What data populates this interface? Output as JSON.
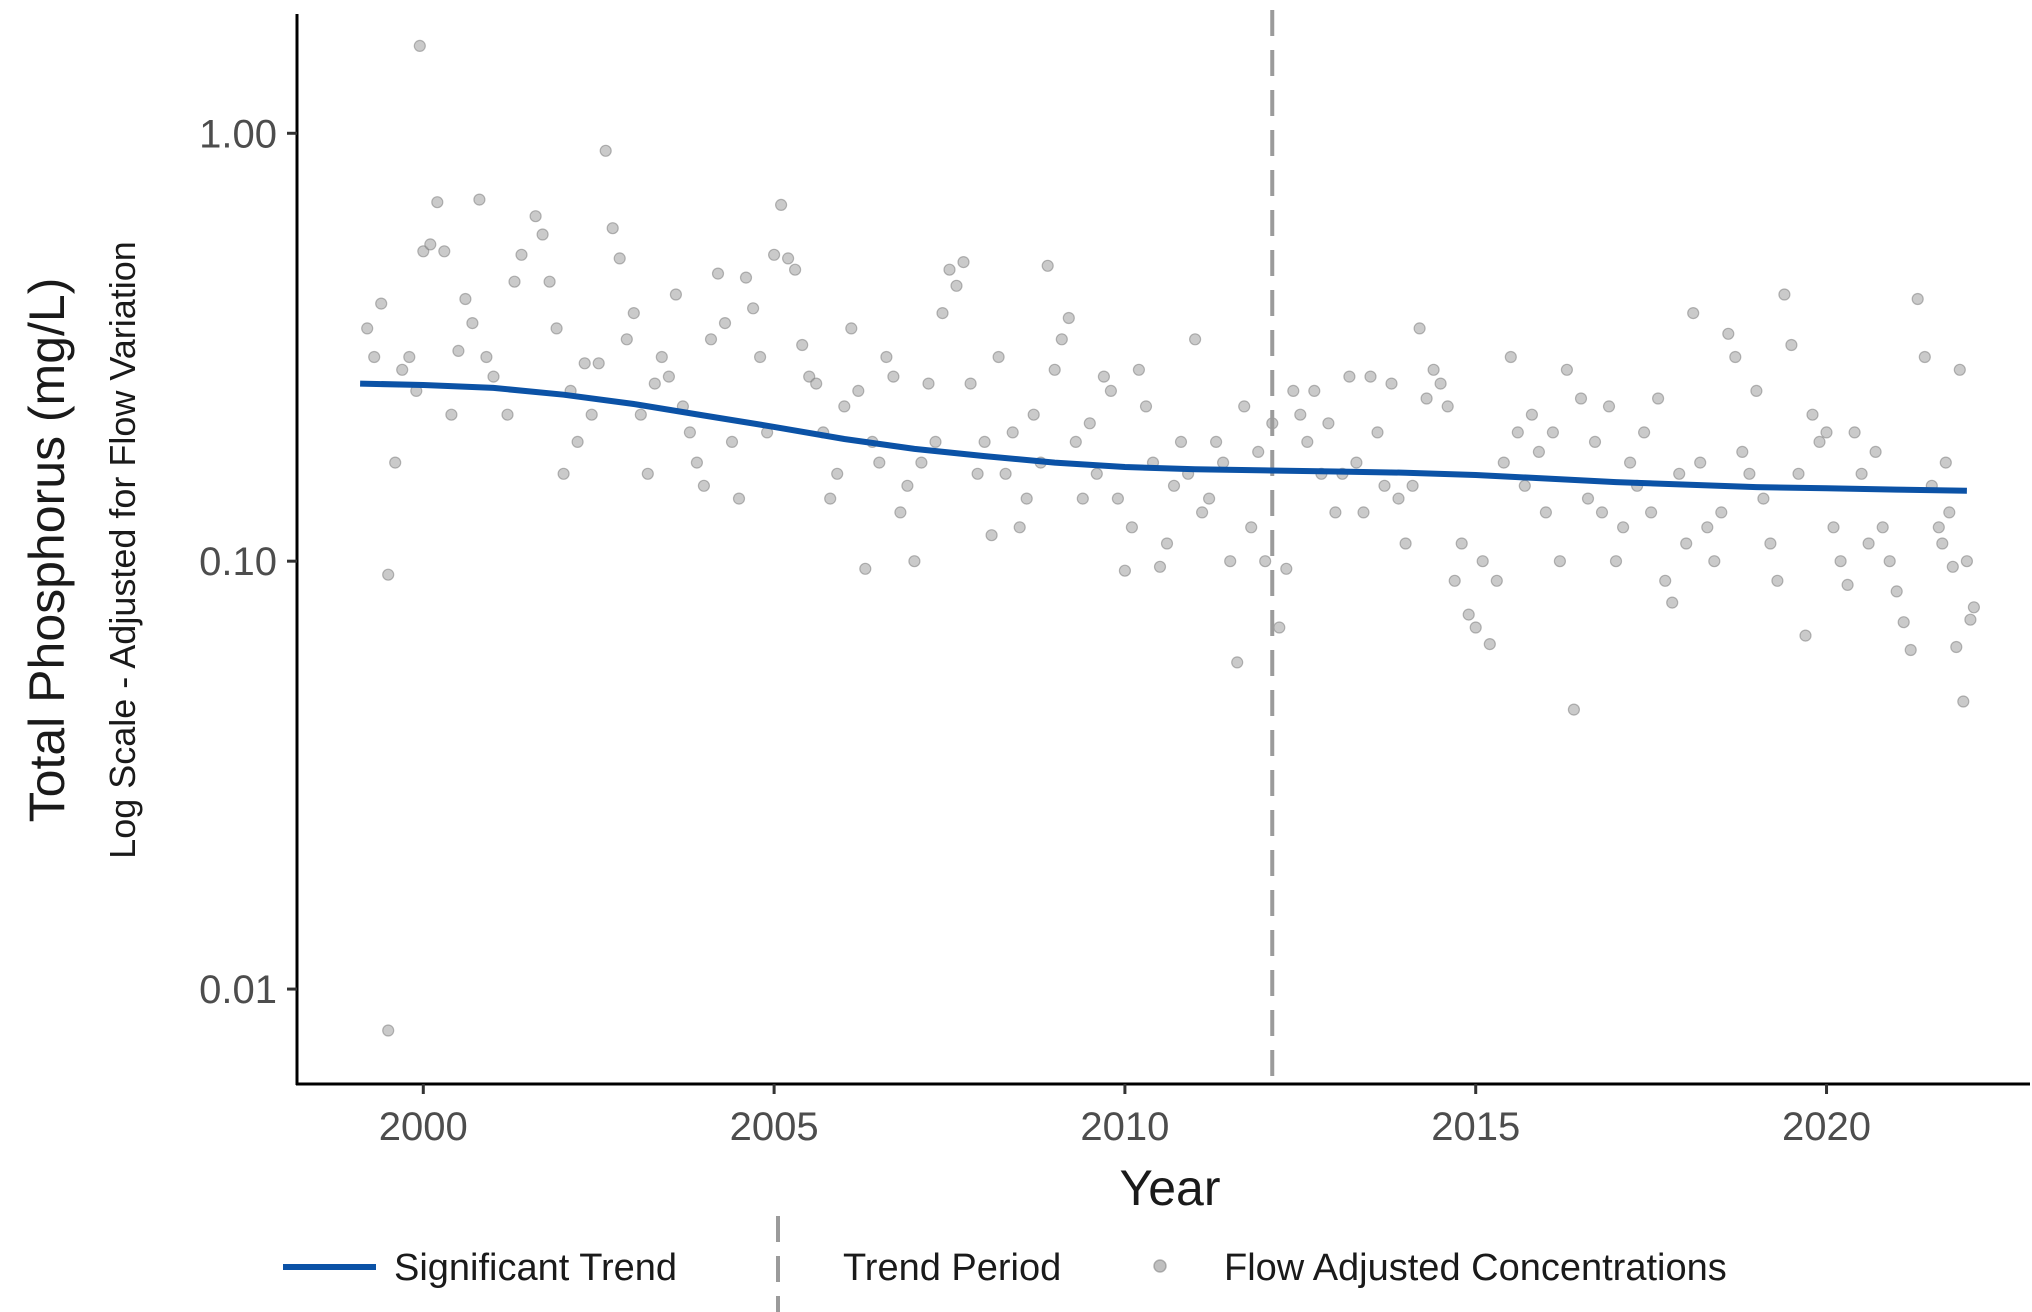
{
  "chart_data": {
    "type": "scatter",
    "title": "",
    "xlabel": "Year",
    "ylabel": "Total Phosphorus (mg/L)",
    "ylabel_sub": "Log Scale - Adjusted for Flow Variation",
    "y_scale": "log",
    "xlim": [
      1998.2,
      2022.9
    ],
    "ylim": [
      0.006,
      1.9
    ],
    "x_ticks": [
      2000,
      2005,
      2010,
      2015,
      2020
    ],
    "x_tick_labels": [
      "2000",
      "2005",
      "2010",
      "2015",
      "2020"
    ],
    "y_ticks": [
      0.01,
      0.1,
      1.0
    ],
    "y_tick_labels": [
      "0.01",
      "0.10",
      "1.00"
    ],
    "grid": false,
    "legend_position": "bottom",
    "legend": [
      {
        "label": "Significant Trend",
        "kind": "line",
        "color": "#0b52a6"
      },
      {
        "label": "Trend Period",
        "kind": "dashed-vline",
        "color": "#9b9b9b"
      },
      {
        "label": "Flow Adjusted Concentrations",
        "kind": "point",
        "color": "#aaaaaa"
      }
    ],
    "trend_period_start": 2012.1,
    "series": [
      {
        "name": "Significant Trend",
        "type": "line",
        "color": "#0b52a6",
        "x": [
          1999.1,
          2000.0,
          2001.0,
          2002.0,
          2003.0,
          2004.0,
          2005.0,
          2006.0,
          2007.0,
          2008.0,
          2009.0,
          2010.0,
          2011.0,
          2012.0,
          2013.0,
          2014.0,
          2015.0,
          2016.0,
          2017.0,
          2018.0,
          2019.0,
          2020.0,
          2021.0,
          2022.0
        ],
        "y": [
          0.26,
          0.258,
          0.254,
          0.245,
          0.233,
          0.219,
          0.206,
          0.193,
          0.183,
          0.176,
          0.17,
          0.166,
          0.164,
          0.163,
          0.162,
          0.161,
          0.159,
          0.156,
          0.153,
          0.151,
          0.149,
          0.148,
          0.147,
          0.146
        ]
      },
      {
        "name": "Flow Adjusted Concentrations",
        "type": "scatter",
        "color": "#a6a6a6",
        "points": [
          [
            1999.2,
            0.35
          ],
          [
            1999.3,
            0.3
          ],
          [
            1999.4,
            0.4
          ],
          [
            1999.5,
            0.093
          ],
          [
            1999.5,
            0.008
          ],
          [
            1999.6,
            0.17
          ],
          [
            1999.7,
            0.28
          ],
          [
            1999.8,
            0.3
          ],
          [
            1999.9,
            0.25
          ],
          [
            1999.95,
            1.6
          ],
          [
            2000.0,
            0.53
          ],
          [
            2000.1,
            0.55
          ],
          [
            2000.2,
            0.69
          ],
          [
            2000.3,
            0.53
          ],
          [
            2000.4,
            0.22
          ],
          [
            2000.5,
            0.31
          ],
          [
            2000.6,
            0.41
          ],
          [
            2000.7,
            0.36
          ],
          [
            2000.8,
            0.7
          ],
          [
            2000.9,
            0.3
          ],
          [
            2001.0,
            0.27
          ],
          [
            2001.2,
            0.22
          ],
          [
            2001.3,
            0.45
          ],
          [
            2001.4,
            0.52
          ],
          [
            2001.6,
            0.64
          ],
          [
            2001.7,
            0.58
          ],
          [
            2001.8,
            0.45
          ],
          [
            2001.9,
            0.35
          ],
          [
            2002.0,
            0.16
          ],
          [
            2002.1,
            0.25
          ],
          [
            2002.2,
            0.19
          ],
          [
            2002.3,
            0.29
          ],
          [
            2002.4,
            0.22
          ],
          [
            2002.5,
            0.29
          ],
          [
            2002.6,
            0.91
          ],
          [
            2002.7,
            0.6
          ],
          [
            2002.8,
            0.51
          ],
          [
            2002.9,
            0.33
          ],
          [
            2003.0,
            0.38
          ],
          [
            2003.1,
            0.22
          ],
          [
            2003.2,
            0.16
          ],
          [
            2003.3,
            0.26
          ],
          [
            2003.4,
            0.3
          ],
          [
            2003.5,
            0.27
          ],
          [
            2003.6,
            0.42
          ],
          [
            2003.7,
            0.23
          ],
          [
            2003.8,
            0.2
          ],
          [
            2003.9,
            0.17
          ],
          [
            2004.0,
            0.15
          ],
          [
            2004.1,
            0.33
          ],
          [
            2004.2,
            0.47
          ],
          [
            2004.3,
            0.36
          ],
          [
            2004.4,
            0.19
          ],
          [
            2004.5,
            0.14
          ],
          [
            2004.6,
            0.46
          ],
          [
            2004.7,
            0.39
          ],
          [
            2004.8,
            0.3
          ],
          [
            2004.9,
            0.2
          ],
          [
            2005.0,
            0.52
          ],
          [
            2005.1,
            0.68
          ],
          [
            2005.2,
            0.51
          ],
          [
            2005.3,
            0.48
          ],
          [
            2005.4,
            0.32
          ],
          [
            2005.5,
            0.27
          ],
          [
            2005.6,
            0.26
          ],
          [
            2005.7,
            0.2
          ],
          [
            2005.8,
            0.14
          ],
          [
            2005.9,
            0.16
          ],
          [
            2006.0,
            0.23
          ],
          [
            2006.1,
            0.35
          ],
          [
            2006.2,
            0.25
          ],
          [
            2006.3,
            0.096
          ],
          [
            2006.4,
            0.19
          ],
          [
            2006.5,
            0.17
          ],
          [
            2006.6,
            0.3
          ],
          [
            2006.7,
            0.27
          ],
          [
            2006.8,
            0.13
          ],
          [
            2006.9,
            0.15
          ],
          [
            2007.0,
            0.1
          ],
          [
            2007.1,
            0.17
          ],
          [
            2007.2,
            0.26
          ],
          [
            2007.3,
            0.19
          ],
          [
            2007.4,
            0.38
          ],
          [
            2007.5,
            0.48
          ],
          [
            2007.6,
            0.44
          ],
          [
            2007.7,
            0.5
          ],
          [
            2007.8,
            0.26
          ],
          [
            2007.9,
            0.16
          ],
          [
            2008.0,
            0.19
          ],
          [
            2008.1,
            0.115
          ],
          [
            2008.2,
            0.3
          ],
          [
            2008.3,
            0.16
          ],
          [
            2008.4,
            0.2
          ],
          [
            2008.5,
            0.12
          ],
          [
            2008.6,
            0.14
          ],
          [
            2008.7,
            0.22
          ],
          [
            2008.8,
            0.17
          ],
          [
            2008.9,
            0.49
          ],
          [
            2009.0,
            0.28
          ],
          [
            2009.1,
            0.33
          ],
          [
            2009.2,
            0.37
          ],
          [
            2009.3,
            0.19
          ],
          [
            2009.4,
            0.14
          ],
          [
            2009.5,
            0.21
          ],
          [
            2009.6,
            0.16
          ],
          [
            2009.7,
            0.27
          ],
          [
            2009.8,
            0.25
          ],
          [
            2009.9,
            0.14
          ],
          [
            2010.0,
            0.095
          ],
          [
            2010.1,
            0.12
          ],
          [
            2010.2,
            0.28
          ],
          [
            2010.3,
            0.23
          ],
          [
            2010.4,
            0.17
          ],
          [
            2010.5,
            0.097
          ],
          [
            2010.6,
            0.11
          ],
          [
            2010.7,
            0.15
          ],
          [
            2010.8,
            0.19
          ],
          [
            2010.9,
            0.16
          ],
          [
            2011.0,
            0.33
          ],
          [
            2011.1,
            0.13
          ],
          [
            2011.2,
            0.14
          ],
          [
            2011.3,
            0.19
          ],
          [
            2011.4,
            0.17
          ],
          [
            2011.5,
            0.1
          ],
          [
            2011.6,
            0.058
          ],
          [
            2011.7,
            0.23
          ],
          [
            2011.8,
            0.12
          ],
          [
            2011.9,
            0.18
          ],
          [
            2012.0,
            0.1
          ],
          [
            2012.1,
            0.21
          ],
          [
            2012.2,
            0.07
          ],
          [
            2012.3,
            0.096
          ],
          [
            2012.4,
            0.25
          ],
          [
            2012.5,
            0.22
          ],
          [
            2012.6,
            0.19
          ],
          [
            2012.7,
            0.25
          ],
          [
            2012.8,
            0.16
          ],
          [
            2012.9,
            0.21
          ],
          [
            2013.0,
            0.13
          ],
          [
            2013.1,
            0.16
          ],
          [
            2013.2,
            0.27
          ],
          [
            2013.3,
            0.17
          ],
          [
            2013.4,
            0.13
          ],
          [
            2013.5,
            0.27
          ],
          [
            2013.6,
            0.2
          ],
          [
            2013.7,
            0.15
          ],
          [
            2013.8,
            0.26
          ],
          [
            2013.9,
            0.14
          ],
          [
            2014.0,
            0.11
          ],
          [
            2014.1,
            0.15
          ],
          [
            2014.2,
            0.35
          ],
          [
            2014.3,
            0.24
          ],
          [
            2014.4,
            0.28
          ],
          [
            2014.5,
            0.26
          ],
          [
            2014.6,
            0.23
          ],
          [
            2014.7,
            0.09
          ],
          [
            2014.8,
            0.11
          ],
          [
            2014.9,
            0.075
          ],
          [
            2015.0,
            0.07
          ],
          [
            2015.1,
            0.1
          ],
          [
            2015.2,
            0.064
          ],
          [
            2015.3,
            0.09
          ],
          [
            2015.4,
            0.17
          ],
          [
            2015.5,
            0.3
          ],
          [
            2015.6,
            0.2
          ],
          [
            2015.7,
            0.15
          ],
          [
            2015.8,
            0.22
          ],
          [
            2015.9,
            0.18
          ],
          [
            2016.0,
            0.13
          ],
          [
            2016.1,
            0.2
          ],
          [
            2016.2,
            0.1
          ],
          [
            2016.3,
            0.28
          ],
          [
            2016.4,
            0.045
          ],
          [
            2016.5,
            0.24
          ],
          [
            2016.6,
            0.14
          ],
          [
            2016.7,
            0.19
          ],
          [
            2016.8,
            0.13
          ],
          [
            2016.9,
            0.23
          ],
          [
            2017.0,
            0.1
          ],
          [
            2017.1,
            0.12
          ],
          [
            2017.2,
            0.17
          ],
          [
            2017.3,
            0.15
          ],
          [
            2017.4,
            0.2
          ],
          [
            2017.5,
            0.13
          ],
          [
            2017.6,
            0.24
          ],
          [
            2017.7,
            0.09
          ],
          [
            2017.8,
            0.08
          ],
          [
            2017.9,
            0.16
          ],
          [
            2018.0,
            0.11
          ],
          [
            2018.1,
            0.38
          ],
          [
            2018.2,
            0.17
          ],
          [
            2018.3,
            0.12
          ],
          [
            2018.4,
            0.1
          ],
          [
            2018.5,
            0.13
          ],
          [
            2018.6,
            0.34
          ],
          [
            2018.7,
            0.3
          ],
          [
            2018.8,
            0.18
          ],
          [
            2018.9,
            0.16
          ],
          [
            2019.0,
            0.25
          ],
          [
            2019.1,
            0.14
          ],
          [
            2019.2,
            0.11
          ],
          [
            2019.3,
            0.09
          ],
          [
            2019.4,
            0.42
          ],
          [
            2019.5,
            0.32
          ],
          [
            2019.6,
            0.16
          ],
          [
            2019.7,
            0.067
          ],
          [
            2019.8,
            0.22
          ],
          [
            2019.9,
            0.19
          ],
          [
            2020.0,
            0.2
          ],
          [
            2020.1,
            0.12
          ],
          [
            2020.2,
            0.1
          ],
          [
            2020.3,
            0.088
          ],
          [
            2020.4,
            0.2
          ],
          [
            2020.5,
            0.16
          ],
          [
            2020.6,
            0.11
          ],
          [
            2020.7,
            0.18
          ],
          [
            2020.8,
            0.12
          ],
          [
            2020.9,
            0.1
          ],
          [
            2021.0,
            0.085
          ],
          [
            2021.1,
            0.072
          ],
          [
            2021.2,
            0.062
          ],
          [
            2021.3,
            0.41
          ],
          [
            2021.4,
            0.3
          ],
          [
            2021.5,
            0.15
          ],
          [
            2021.6,
            0.12
          ],
          [
            2021.7,
            0.17
          ],
          [
            2021.8,
            0.097
          ],
          [
            2021.9,
            0.28
          ],
          [
            2022.0,
            0.1
          ],
          [
            2022.1,
            0.078
          ],
          [
            2021.95,
            0.047
          ],
          [
            2022.05,
            0.073
          ],
          [
            2021.85,
            0.063
          ],
          [
            2021.75,
            0.13
          ],
          [
            2021.65,
            0.11
          ]
        ]
      }
    ]
  }
}
